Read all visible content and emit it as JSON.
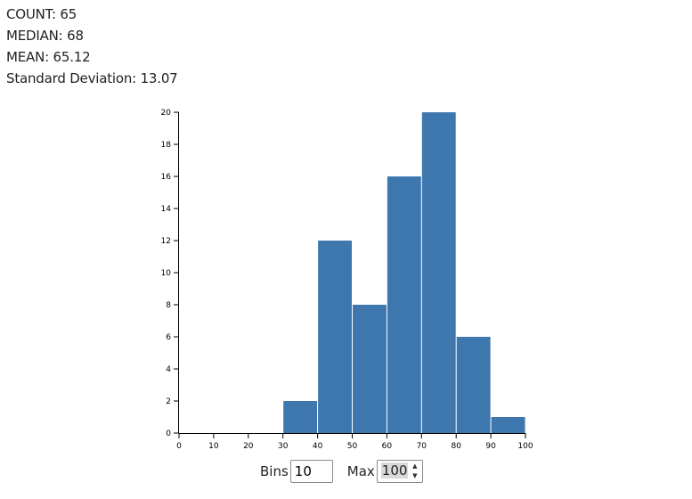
{
  "stats": {
    "count": "COUNT: 65",
    "median": "MEDIAN: 68",
    "mean": "MEAN: 65.12",
    "std": "Standard Deviation: 13.07"
  },
  "controls": {
    "bins_label": "Bins",
    "bins_value": "10",
    "max_label": "Max",
    "max_value": "100"
  },
  "colors": {
    "bar": "#3e76ae",
    "axis": "#000000"
  },
  "chart_data": {
    "type": "bar",
    "title": "",
    "xlabel": "",
    "ylabel": "",
    "bins": [
      {
        "x0": 0,
        "x1": 10,
        "count": 0
      },
      {
        "x0": 10,
        "x1": 20,
        "count": 0
      },
      {
        "x0": 20,
        "x1": 30,
        "count": 0
      },
      {
        "x0": 30,
        "x1": 40,
        "count": 2
      },
      {
        "x0": 40,
        "x1": 50,
        "count": 12
      },
      {
        "x0": 50,
        "x1": 60,
        "count": 8
      },
      {
        "x0": 60,
        "x1": 70,
        "count": 16
      },
      {
        "x0": 70,
        "x1": 80,
        "count": 20
      },
      {
        "x0": 80,
        "x1": 90,
        "count": 6
      },
      {
        "x0": 90,
        "x1": 100,
        "count": 1
      }
    ],
    "xlim": [
      0,
      100
    ],
    "ylim": [
      0,
      20
    ],
    "x_ticks": [
      0,
      10,
      20,
      30,
      40,
      50,
      60,
      70,
      80,
      90,
      100
    ],
    "y_ticks": [
      0,
      2,
      4,
      6,
      8,
      10,
      12,
      14,
      16,
      18,
      20
    ],
    "grid": false
  }
}
